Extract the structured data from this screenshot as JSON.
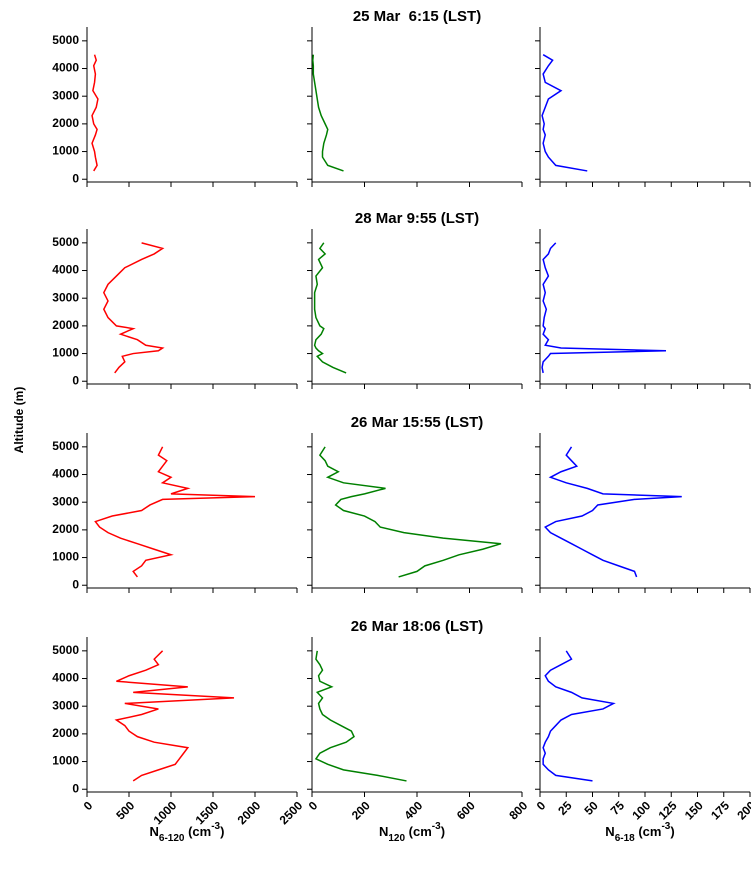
{
  "chart_data": [
    {
      "type": "line",
      "y": [
        300,
        500,
        800,
        1000,
        1300,
        1600,
        1800,
        2000,
        2300,
        2600,
        2900,
        3200,
        3500,
        3800,
        4100,
        4300,
        4500
      ],
      "values": [
        80,
        120,
        100,
        90,
        60,
        100,
        120,
        80,
        60,
        110,
        130,
        70,
        90,
        100,
        80,
        110,
        90
      ],
      "color": "#ff0000",
      "xlim": [
        0,
        2500
      ],
      "xticks": [
        0,
        500,
        1000,
        1500,
        2000,
        2500
      ],
      "ylim": [
        -100,
        5500
      ],
      "yticks": [
        0,
        1000,
        2000,
        3000,
        4000,
        5000
      ]
    },
    {
      "type": "line",
      "title": "25 Mar  6:15 (LST)",
      "y": [
        300,
        500,
        800,
        1000,
        1300,
        1600,
        1800,
        2000,
        2300,
        2600,
        2900,
        3200,
        3500,
        3800,
        4100,
        4300,
        4500
      ],
      "values": [
        120,
        60,
        40,
        40,
        45,
        55,
        60,
        50,
        35,
        25,
        20,
        15,
        10,
        5,
        5,
        3,
        5
      ],
      "color": "#008000",
      "xlim": [
        0,
        800
      ],
      "xticks": [
        0,
        200,
        400,
        600,
        800
      ],
      "ylim": [
        -100,
        5500
      ],
      "yticks": [
        0,
        1000,
        2000,
        3000,
        4000,
        5000
      ]
    },
    {
      "type": "line",
      "y": [
        300,
        500,
        800,
        1000,
        1300,
        1600,
        1800,
        2000,
        2300,
        2600,
        2900,
        3200,
        3500,
        3800,
        4100,
        4300,
        4500
      ],
      "values": [
        45,
        15,
        8,
        5,
        3,
        5,
        3,
        4,
        2,
        5,
        8,
        20,
        5,
        3,
        8,
        12,
        3
      ],
      "color": "#0000ff",
      "xlim": [
        0,
        200
      ],
      "xticks": [
        0,
        25,
        50,
        75,
        100,
        125,
        150,
        175,
        200
      ],
      "ylim": [
        -100,
        5500
      ],
      "yticks": [
        0,
        1000,
        2000,
        3000,
        4000,
        5000
      ]
    },
    {
      "type": "line",
      "ylabel": "Altitude (m)",
      "y": [
        300,
        500,
        700,
        900,
        1000,
        1100,
        1200,
        1300,
        1500,
        1700,
        1900,
        2000,
        2300,
        2600,
        2900,
        3200,
        3500,
        3800,
        4100,
        4400,
        4600,
        4800,
        5000
      ],
      "values": [
        330,
        380,
        450,
        420,
        550,
        850,
        900,
        700,
        600,
        400,
        550,
        350,
        250,
        200,
        250,
        200,
        250,
        350,
        450,
        650,
        800,
        900,
        650
      ],
      "color": "#ff0000",
      "xlim": [
        0,
        2500
      ],
      "xticks": [
        0,
        500,
        1000,
        1500,
        2000,
        2500
      ],
      "ylim": [
        -100,
        5500
      ],
      "yticks": [
        0,
        1000,
        2000,
        3000,
        4000,
        5000
      ]
    },
    {
      "type": "line",
      "title": "28 Mar 9:55 (LST)",
      "y": [
        300,
        500,
        700,
        900,
        1000,
        1100,
        1200,
        1300,
        1500,
        1700,
        1900,
        2000,
        2300,
        2600,
        2900,
        3200,
        3500,
        3800,
        4100,
        4400,
        4600,
        4800,
        5000
      ],
      "values": [
        130,
        80,
        40,
        20,
        40,
        25,
        15,
        10,
        15,
        35,
        45,
        30,
        15,
        10,
        10,
        10,
        20,
        15,
        40,
        25,
        50,
        30,
        45
      ],
      "color": "#008000",
      "xlim": [
        0,
        800
      ],
      "xticks": [
        0,
        200,
        400,
        600,
        800
      ],
      "ylim": [
        -100,
        5500
      ],
      "yticks": [
        0,
        1000,
        2000,
        3000,
        4000,
        5000
      ]
    },
    {
      "type": "line",
      "y": [
        300,
        500,
        700,
        900,
        1000,
        1100,
        1200,
        1300,
        1500,
        1700,
        1900,
        2000,
        2300,
        2600,
        2900,
        3200,
        3500,
        3800,
        4100,
        4400,
        4600,
        4800,
        5000
      ],
      "values": [
        3,
        2,
        3,
        8,
        10,
        120,
        20,
        5,
        8,
        3,
        5,
        3,
        4,
        6,
        3,
        5,
        3,
        8,
        5,
        3,
        8,
        10,
        15
      ],
      "color": "#0000ff",
      "xlim": [
        0,
        200
      ],
      "xticks": [
        0,
        25,
        50,
        75,
        100,
        125,
        150,
        175,
        200
      ],
      "ylim": [
        -100,
        5500
      ],
      "yticks": [
        0,
        1000,
        2000,
        3000,
        4000,
        5000
      ]
    },
    {
      "type": "line",
      "y": [
        300,
        500,
        700,
        900,
        1100,
        1300,
        1500,
        1700,
        1900,
        2100,
        2300,
        2500,
        2700,
        2900,
        3100,
        3200,
        3300,
        3500,
        3700,
        3900,
        4100,
        4300,
        4500,
        4700,
        5000
      ],
      "values": [
        600,
        550,
        650,
        700,
        1000,
        800,
        600,
        400,
        250,
        150,
        100,
        300,
        650,
        750,
        900,
        2000,
        1000,
        1200,
        900,
        1000,
        850,
        900,
        950,
        850,
        900
      ],
      "color": "#ff0000",
      "xlim": [
        0,
        2500
      ],
      "xticks": [
        0,
        500,
        1000,
        1500,
        2000,
        2500
      ],
      "ylim": [
        -100,
        5500
      ],
      "yticks": [
        0,
        1000,
        2000,
        3000,
        4000,
        5000
      ]
    },
    {
      "type": "line",
      "title": "26 Mar 15:55 (LST)",
      "y": [
        300,
        500,
        700,
        900,
        1100,
        1300,
        1500,
        1700,
        1900,
        2100,
        2300,
        2500,
        2700,
        2900,
        3100,
        3200,
        3300,
        3500,
        3700,
        3900,
        4100,
        4300,
        4500,
        4700,
        5000
      ],
      "values": [
        330,
        400,
        430,
        500,
        560,
        650,
        720,
        500,
        350,
        260,
        240,
        200,
        120,
        90,
        110,
        150,
        200,
        280,
        120,
        60,
        100,
        60,
        50,
        30,
        50
      ],
      "color": "#008000",
      "xlim": [
        0,
        800
      ],
      "xticks": [
        0,
        200,
        400,
        600,
        800
      ],
      "ylim": [
        -100,
        5500
      ],
      "yticks": [
        0,
        1000,
        2000,
        3000,
        4000,
        5000
      ]
    },
    {
      "type": "line",
      "y": [
        300,
        500,
        700,
        900,
        1100,
        1300,
        1500,
        1700,
        1900,
        2100,
        2300,
        2500,
        2700,
        2900,
        3100,
        3200,
        3300,
        3500,
        3700,
        3900,
        4100,
        4300,
        4500,
        4700,
        5000
      ],
      "values": [
        92,
        90,
        75,
        60,
        50,
        40,
        30,
        20,
        10,
        5,
        15,
        40,
        50,
        55,
        90,
        135,
        60,
        45,
        25,
        10,
        20,
        35,
        30,
        25,
        30
      ],
      "color": "#0000ff",
      "xlim": [
        0,
        200
      ],
      "xticks": [
        0,
        25,
        50,
        75,
        100,
        125,
        150,
        175,
        200
      ],
      "ylim": [
        -100,
        5500
      ],
      "yticks": [
        0,
        1000,
        2000,
        3000,
        4000,
        5000
      ]
    },
    {
      "type": "line",
      "xlabel": [
        "N",
        "6-120",
        " (cm",
        "-3",
        ")"
      ],
      "y": [
        300,
        500,
        700,
        900,
        1100,
        1300,
        1500,
        1700,
        1900,
        2100,
        2300,
        2500,
        2700,
        2900,
        3100,
        3300,
        3500,
        3700,
        3900,
        4100,
        4300,
        4500,
        4700,
        5000
      ],
      "values": [
        550,
        650,
        850,
        1050,
        1100,
        1150,
        1200,
        800,
        600,
        500,
        450,
        350,
        650,
        850,
        450,
        1750,
        550,
        1200,
        350,
        500,
        700,
        850,
        800,
        900
      ],
      "color": "#ff0000",
      "xlim": [
        0,
        2500
      ],
      "xticks": [
        0,
        500,
        1000,
        1500,
        2000,
        2500
      ],
      "ylim": [
        -100,
        5500
      ],
      "yticks": [
        0,
        1000,
        2000,
        3000,
        4000,
        5000
      ]
    },
    {
      "type": "line",
      "title": "26 Mar 18:06 (LST)",
      "xlabel": [
        "N",
        "120",
        " (cm",
        "-3",
        ")"
      ],
      "y": [
        300,
        500,
        700,
        900,
        1100,
        1300,
        1500,
        1700,
        1900,
        2100,
        2300,
        2500,
        2700,
        2900,
        3100,
        3300,
        3500,
        3700,
        3900,
        4100,
        4300,
        4500,
        4700,
        5000
      ],
      "values": [
        360,
        250,
        120,
        60,
        15,
        30,
        70,
        130,
        160,
        150,
        110,
        70,
        40,
        30,
        25,
        40,
        20,
        75,
        30,
        25,
        40,
        30,
        15,
        20
      ],
      "color": "#008000",
      "xlim": [
        0,
        800
      ],
      "xticks": [
        0,
        200,
        400,
        600,
        800
      ],
      "ylim": [
        -100,
        5500
      ],
      "yticks": [
        0,
        1000,
        2000,
        3000,
        4000,
        5000
      ]
    },
    {
      "type": "line",
      "xlabel": [
        "N",
        "6-18",
        " (cm",
        "-3",
        ")"
      ],
      "y": [
        300,
        500,
        700,
        900,
        1100,
        1300,
        1500,
        1700,
        1900,
        2100,
        2300,
        2500,
        2700,
        2900,
        3100,
        3300,
        3500,
        3700,
        3900,
        4100,
        4300,
        4500,
        4700,
        5000
      ],
      "values": [
        50,
        15,
        8,
        3,
        3,
        5,
        3,
        5,
        8,
        10,
        15,
        20,
        30,
        60,
        70,
        40,
        30,
        15,
        8,
        5,
        10,
        20,
        30,
        25
      ],
      "color": "#0000ff",
      "xlim": [
        0,
        200
      ],
      "xticks": [
        0,
        25,
        50,
        75,
        100,
        125,
        150,
        175,
        200
      ],
      "ylim": [
        -100,
        5500
      ],
      "yticks": [
        0,
        1000,
        2000,
        3000,
        4000,
        5000
      ]
    }
  ]
}
